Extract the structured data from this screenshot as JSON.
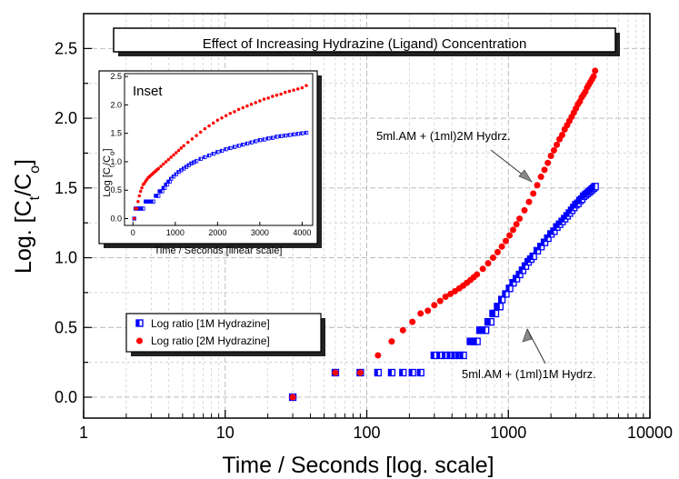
{
  "chart_data": {
    "type": "scatter",
    "title": "Effect of Increasing Hydrazine (Ligand) Concentration",
    "xlabel": "Time / Seconds [log. scale]",
    "ylabel_parts": [
      "Log. [C",
      "t",
      "/C",
      "o",
      "]"
    ],
    "xscale": "log",
    "xlim": [
      1,
      10000
    ],
    "ylim": [
      -0.15,
      2.75
    ],
    "xticks": [
      1,
      10,
      100,
      1000,
      10000
    ],
    "xtick_labels": [
      "1",
      "10",
      "100",
      "1000",
      "10000"
    ],
    "yticks": [
      0.0,
      0.5,
      1.0,
      1.5,
      2.0,
      2.5
    ],
    "ytick_labels": [
      "0.0",
      "0.5",
      "1.0",
      "1.5",
      "2.0",
      "2.5"
    ],
    "grid": true,
    "legend_position": "lower-left",
    "series": [
      {
        "name": "Log ratio [1M Hydrazine]",
        "marker": "half-filled-square",
        "color": "#0000ff",
        "x": [
          30,
          60,
          90,
          120,
          150,
          180,
          210,
          240,
          300,
          330,
          360,
          390,
          420,
          450,
          480,
          540,
          570,
          600,
          630,
          660,
          690,
          720,
          750,
          780,
          810,
          840,
          870,
          900,
          960,
          1020,
          1080,
          1140,
          1200,
          1260,
          1320,
          1380,
          1440,
          1500,
          1600,
          1700,
          1800,
          1900,
          2000,
          2100,
          2200,
          2300,
          2400,
          2500,
          2600,
          2700,
          2800,
          2900,
          3000,
          3100,
          3200,
          3300,
          3400,
          3500,
          3600,
          3700,
          3800,
          3900,
          4000,
          4100
        ],
        "y": [
          0.0,
          0.176,
          0.176,
          0.176,
          0.176,
          0.176,
          0.176,
          0.176,
          0.3,
          0.3,
          0.3,
          0.3,
          0.3,
          0.3,
          0.3,
          0.4,
          0.4,
          0.4,
          0.48,
          0.48,
          0.48,
          0.54,
          0.54,
          0.6,
          0.6,
          0.65,
          0.65,
          0.7,
          0.74,
          0.78,
          0.82,
          0.85,
          0.88,
          0.91,
          0.94,
          0.97,
          0.99,
          1.01,
          1.05,
          1.08,
          1.11,
          1.14,
          1.17,
          1.19,
          1.22,
          1.24,
          1.26,
          1.28,
          1.3,
          1.32,
          1.34,
          1.36,
          1.38,
          1.39,
          1.41,
          1.42,
          1.44,
          1.45,
          1.46,
          1.47,
          1.48,
          1.49,
          1.5,
          1.51
        ]
      },
      {
        "name": "Log ratio [2M Hydrazine]",
        "marker": "filled-circle",
        "color": "#ff0000",
        "x": [
          30,
          60,
          90,
          120,
          150,
          180,
          210,
          240,
          270,
          300,
          330,
          360,
          390,
          420,
          450,
          480,
          510,
          540,
          570,
          600,
          660,
          720,
          780,
          840,
          900,
          960,
          1020,
          1080,
          1140,
          1200,
          1300,
          1400,
          1500,
          1600,
          1700,
          1800,
          1900,
          2000,
          2100,
          2200,
          2300,
          2400,
          2500,
          2600,
          2700,
          2800,
          2900,
          3000,
          3100,
          3200,
          3300,
          3400,
          3500,
          3600,
          3700,
          3800,
          3900,
          4000,
          4100
        ],
        "y": [
          0.0,
          0.176,
          0.176,
          0.3,
          0.4,
          0.48,
          0.54,
          0.6,
          0.62,
          0.66,
          0.69,
          0.72,
          0.74,
          0.76,
          0.78,
          0.8,
          0.82,
          0.84,
          0.86,
          0.88,
          0.92,
          0.96,
          1.0,
          1.04,
          1.08,
          1.12,
          1.16,
          1.2,
          1.24,
          1.28,
          1.34,
          1.4,
          1.46,
          1.52,
          1.58,
          1.63,
          1.68,
          1.73,
          1.77,
          1.81,
          1.85,
          1.88,
          1.92,
          1.95,
          1.98,
          2.01,
          2.04,
          2.07,
          2.1,
          2.12,
          2.15,
          2.17,
          2.19,
          2.22,
          2.24,
          2.26,
          2.28,
          2.3,
          2.34
        ]
      }
    ],
    "annotations": [
      "5ml.AM + (1ml)2M Hydrz.",
      "5ml.AM + (1ml)1M Hydrz."
    ],
    "inset": {
      "type": "scatter",
      "title": "Inset",
      "xlabel": "Time / Seconds [linear scale]",
      "ylabel_parts": [
        "Log [C",
        "t",
        "/C",
        "o",
        "]"
      ],
      "xscale": "linear",
      "xlim": [
        -200,
        4250
      ],
      "ylim": [
        -0.12,
        2.55
      ],
      "xticks": [
        0,
        1000,
        2000,
        3000,
        4000
      ],
      "xtick_labels": [
        "0",
        "1000",
        "2000",
        "3000",
        "4000"
      ],
      "yticks": [
        0.0,
        0.5,
        1.0,
        1.5,
        2.0,
        2.5
      ],
      "ytick_labels": [
        "0.0",
        "0.5",
        "1.0",
        "1.5",
        "2.0",
        "2.5"
      ],
      "series_ref": [
        "Log ratio [1M Hydrazine]",
        "Log ratio [2M Hydrazine]"
      ]
    }
  }
}
